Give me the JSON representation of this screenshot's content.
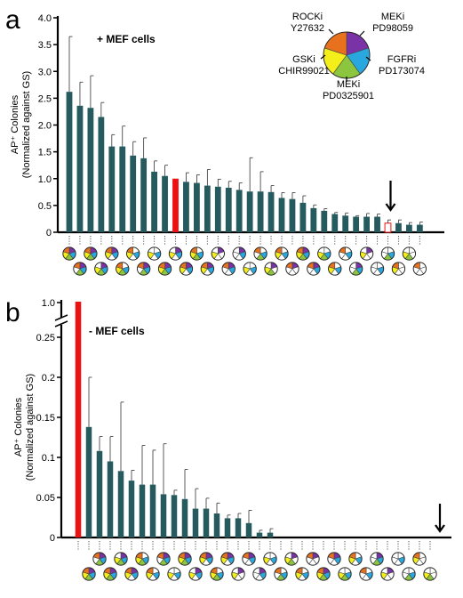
{
  "colors": {
    "bar": "#255a5e",
    "highlight": "#ee1111",
    "axis": "#000000",
    "rock": "#e8711e",
    "mek_pd98059": "#7a33a6",
    "fgfr": "#29a8e0",
    "mek_pd0325901": "#8cc63f",
    "gsk": "#f4ee1a",
    "empty": "#ffffff"
  },
  "legend": {
    "rocki": "ROCKi",
    "rocki_cmpd": "Y27632",
    "meki1": "MEKi",
    "meki1_cmpd": "PD98059",
    "fgfri": "FGFRi",
    "fgfri_cmpd": "PD173074",
    "meki2": "MEKi",
    "meki2_cmpd": "PD0325901",
    "gski": "GSKi",
    "gski_cmpd": "CHIR99021"
  },
  "chart_data": [
    {
      "type": "bar",
      "panel_label": "a",
      "annotation": "+ MEF cells",
      "ylabel": "AP⁺ Colonies",
      "ylabel_sub": "(Normalized against GS)",
      "ylim": [
        0,
        4.0
      ],
      "yticks": [
        "0",
        "0.5",
        "1.0",
        "1.5",
        "2.0",
        "2.5",
        "3.0",
        "3.5",
        "4.0"
      ],
      "values": [
        2.62,
        2.36,
        2.32,
        2.15,
        1.6,
        1.6,
        1.43,
        1.38,
        1.13,
        1.05,
        1.0,
        0.94,
        0.92,
        0.87,
        0.85,
        0.83,
        0.79,
        0.76,
        0.76,
        0.75,
        0.64,
        0.62,
        0.55,
        0.45,
        0.4,
        0.34,
        0.31,
        0.29,
        0.29,
        0.29,
        0.17,
        0.17,
        0.14,
        0.14
      ],
      "errors": [
        1.03,
        0.44,
        0.6,
        0.27,
        0.22,
        0.38,
        0.26,
        0.38,
        0.2,
        0.2,
        0,
        0.17,
        0.15,
        0.3,
        0.14,
        0.12,
        0.13,
        0.63,
        0.37,
        0.12,
        0.1,
        0.12,
        0.13,
        0.06,
        0.04,
        0.03,
        0.05,
        0.02,
        0.06,
        0.05,
        0.06,
        0.06,
        0.04,
        0.05
      ],
      "highlighted_index": 10,
      "hollow_index": 30,
      "arrow_index": 30
    },
    {
      "type": "bar",
      "panel_label": "b",
      "annotation": "- MEF cells",
      "ylabel": "AP⁺ Colonies",
      "ylabel_sub": "(Normalized against GS)",
      "ylim": [
        0,
        0.25
      ],
      "axis_break": true,
      "top_tick": "1.0",
      "yticks": [
        "0",
        "0.05",
        "0.1",
        "0.15",
        "0.2",
        "0.25"
      ],
      "values": [
        1.0,
        0.138,
        0.108,
        0.095,
        0.083,
        0.071,
        0.066,
        0.066,
        0.054,
        0.053,
        0.048,
        0.036,
        0.036,
        0.03,
        0.024,
        0.024,
        0.018,
        0.006,
        0.006,
        0,
        0,
        0,
        0,
        0,
        0,
        0,
        0,
        0,
        0,
        0,
        0,
        0,
        0,
        0
      ],
      "errors": [
        0,
        0.062,
        0.018,
        0.031,
        0.086,
        0.013,
        0.049,
        0.043,
        0.063,
        0.006,
        0.037,
        0.025,
        0.013,
        0.013,
        0.004,
        0.006,
        0.016,
        0.003,
        0.005,
        0,
        0,
        0,
        0,
        0,
        0,
        0,
        0,
        0,
        0,
        0,
        0,
        0,
        0,
        0
      ],
      "highlighted_index": 0,
      "arrow_index": 33
    }
  ],
  "pie_keys": {
    "a": [
      "ROMFG",
      "RMFG",
      "ROMFG",
      "OMFG",
      "ROMF",
      "ROFG",
      "ROF",
      "RMFG",
      "OF",
      "ROMFG",
      "OMF",
      "ROMF",
      "ROFG",
      "ROMF",
      "OM",
      "RMF",
      "MF",
      "OF",
      "RFG",
      "OMG",
      "ROF",
      "RM",
      "ROMFG",
      "RMF",
      "OFG",
      "ROF",
      "RF",
      "MFG",
      "OM",
      "F",
      "FG",
      "RO",
      "OG",
      "R"
    ],
    "b": [
      "",
      "ROMFG",
      "RMFG",
      "ROMFG",
      "OMFG",
      "ROMF",
      "ROFG",
      "ROF",
      "RMFG",
      "OF",
      "ROMFG",
      "OMF",
      "ROMF",
      "ROFG",
      "ROMF",
      "OM",
      "RMF",
      "MF",
      "OF",
      "RFG",
      "OMG",
      "ROF",
      "RM",
      "ROMFG",
      "RMF",
      "OFG",
      "ROF",
      "RF",
      "MFG",
      "OM",
      "F",
      "FG",
      "RO",
      "OG"
    ]
  }
}
